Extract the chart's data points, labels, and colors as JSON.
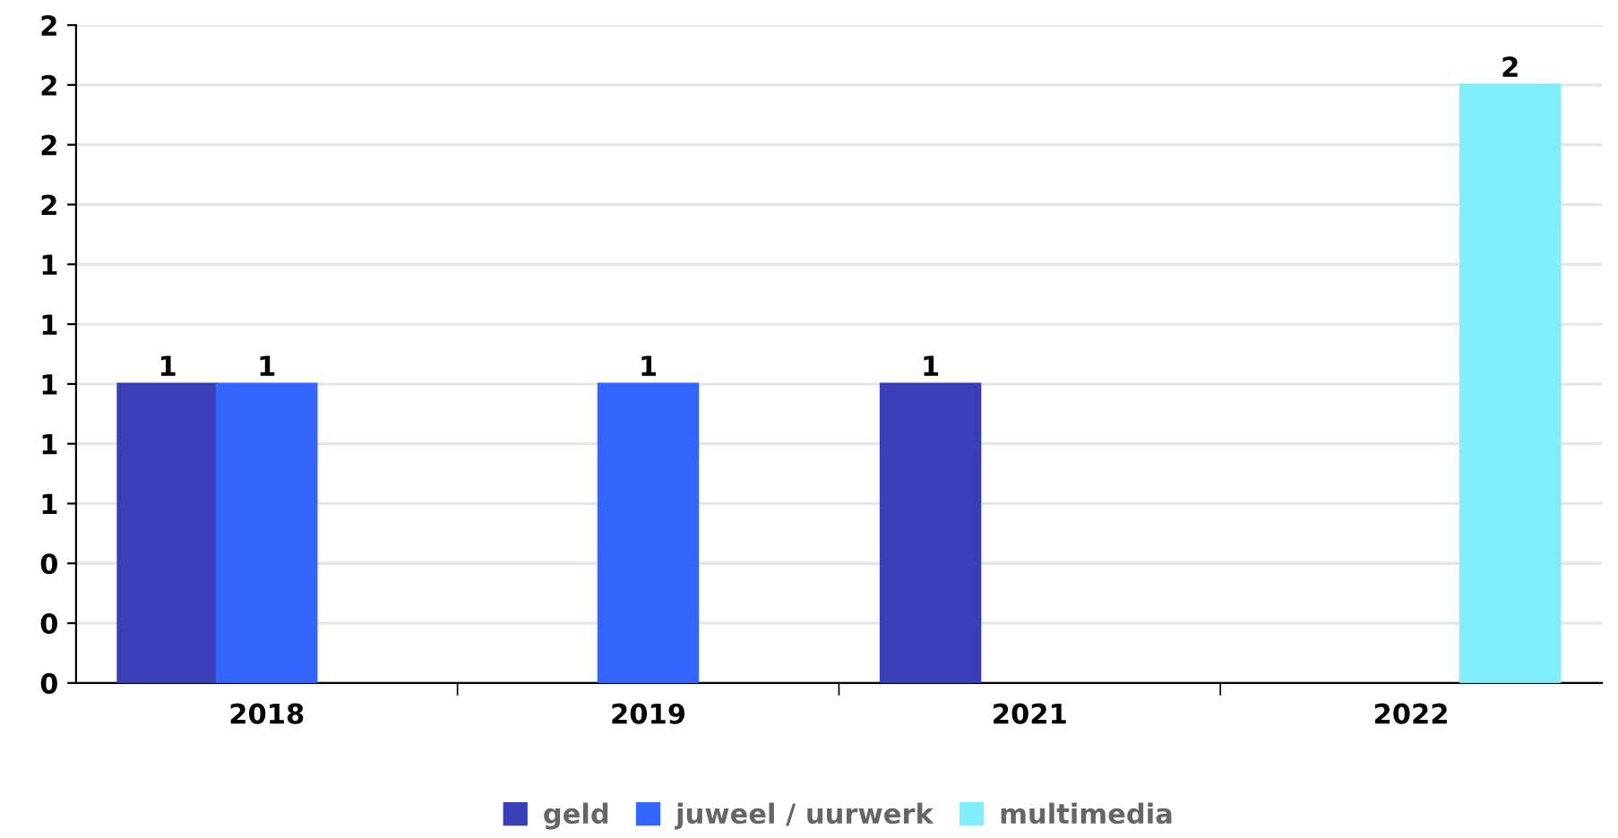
{
  "chart_data": {
    "type": "bar",
    "categories": [
      "2018",
      "2019",
      "2021",
      "2022"
    ],
    "series": [
      {
        "name": "geld",
        "color": "#3a3fb8",
        "values": [
          1,
          null,
          1,
          null
        ]
      },
      {
        "name": "juweel / uurwerk",
        "color": "#3366ff",
        "values": [
          1,
          1,
          null,
          null
        ]
      },
      {
        "name": "multimedia",
        "color": "#80eeff",
        "values": [
          null,
          null,
          null,
          2
        ]
      }
    ],
    "ylim": [
      0,
      2.2
    ],
    "yticks": [
      {
        "value": 0,
        "label": "0"
      },
      {
        "value": 0.2,
        "label": "0"
      },
      {
        "value": 0.4,
        "label": "0"
      },
      {
        "value": 0.6,
        "label": "1"
      },
      {
        "value": 0.8,
        "label": "1"
      },
      {
        "value": 1.0,
        "label": "1"
      },
      {
        "value": 1.2,
        "label": "1"
      },
      {
        "value": 1.4,
        "label": "1"
      },
      {
        "value": 1.6,
        "label": "2"
      },
      {
        "value": 1.8,
        "label": "2"
      },
      {
        "value": 2.0,
        "label": "2"
      },
      {
        "value": 2.2,
        "label": "2"
      }
    ],
    "data_labels": true,
    "grid": "y",
    "legend": "bottom"
  }
}
